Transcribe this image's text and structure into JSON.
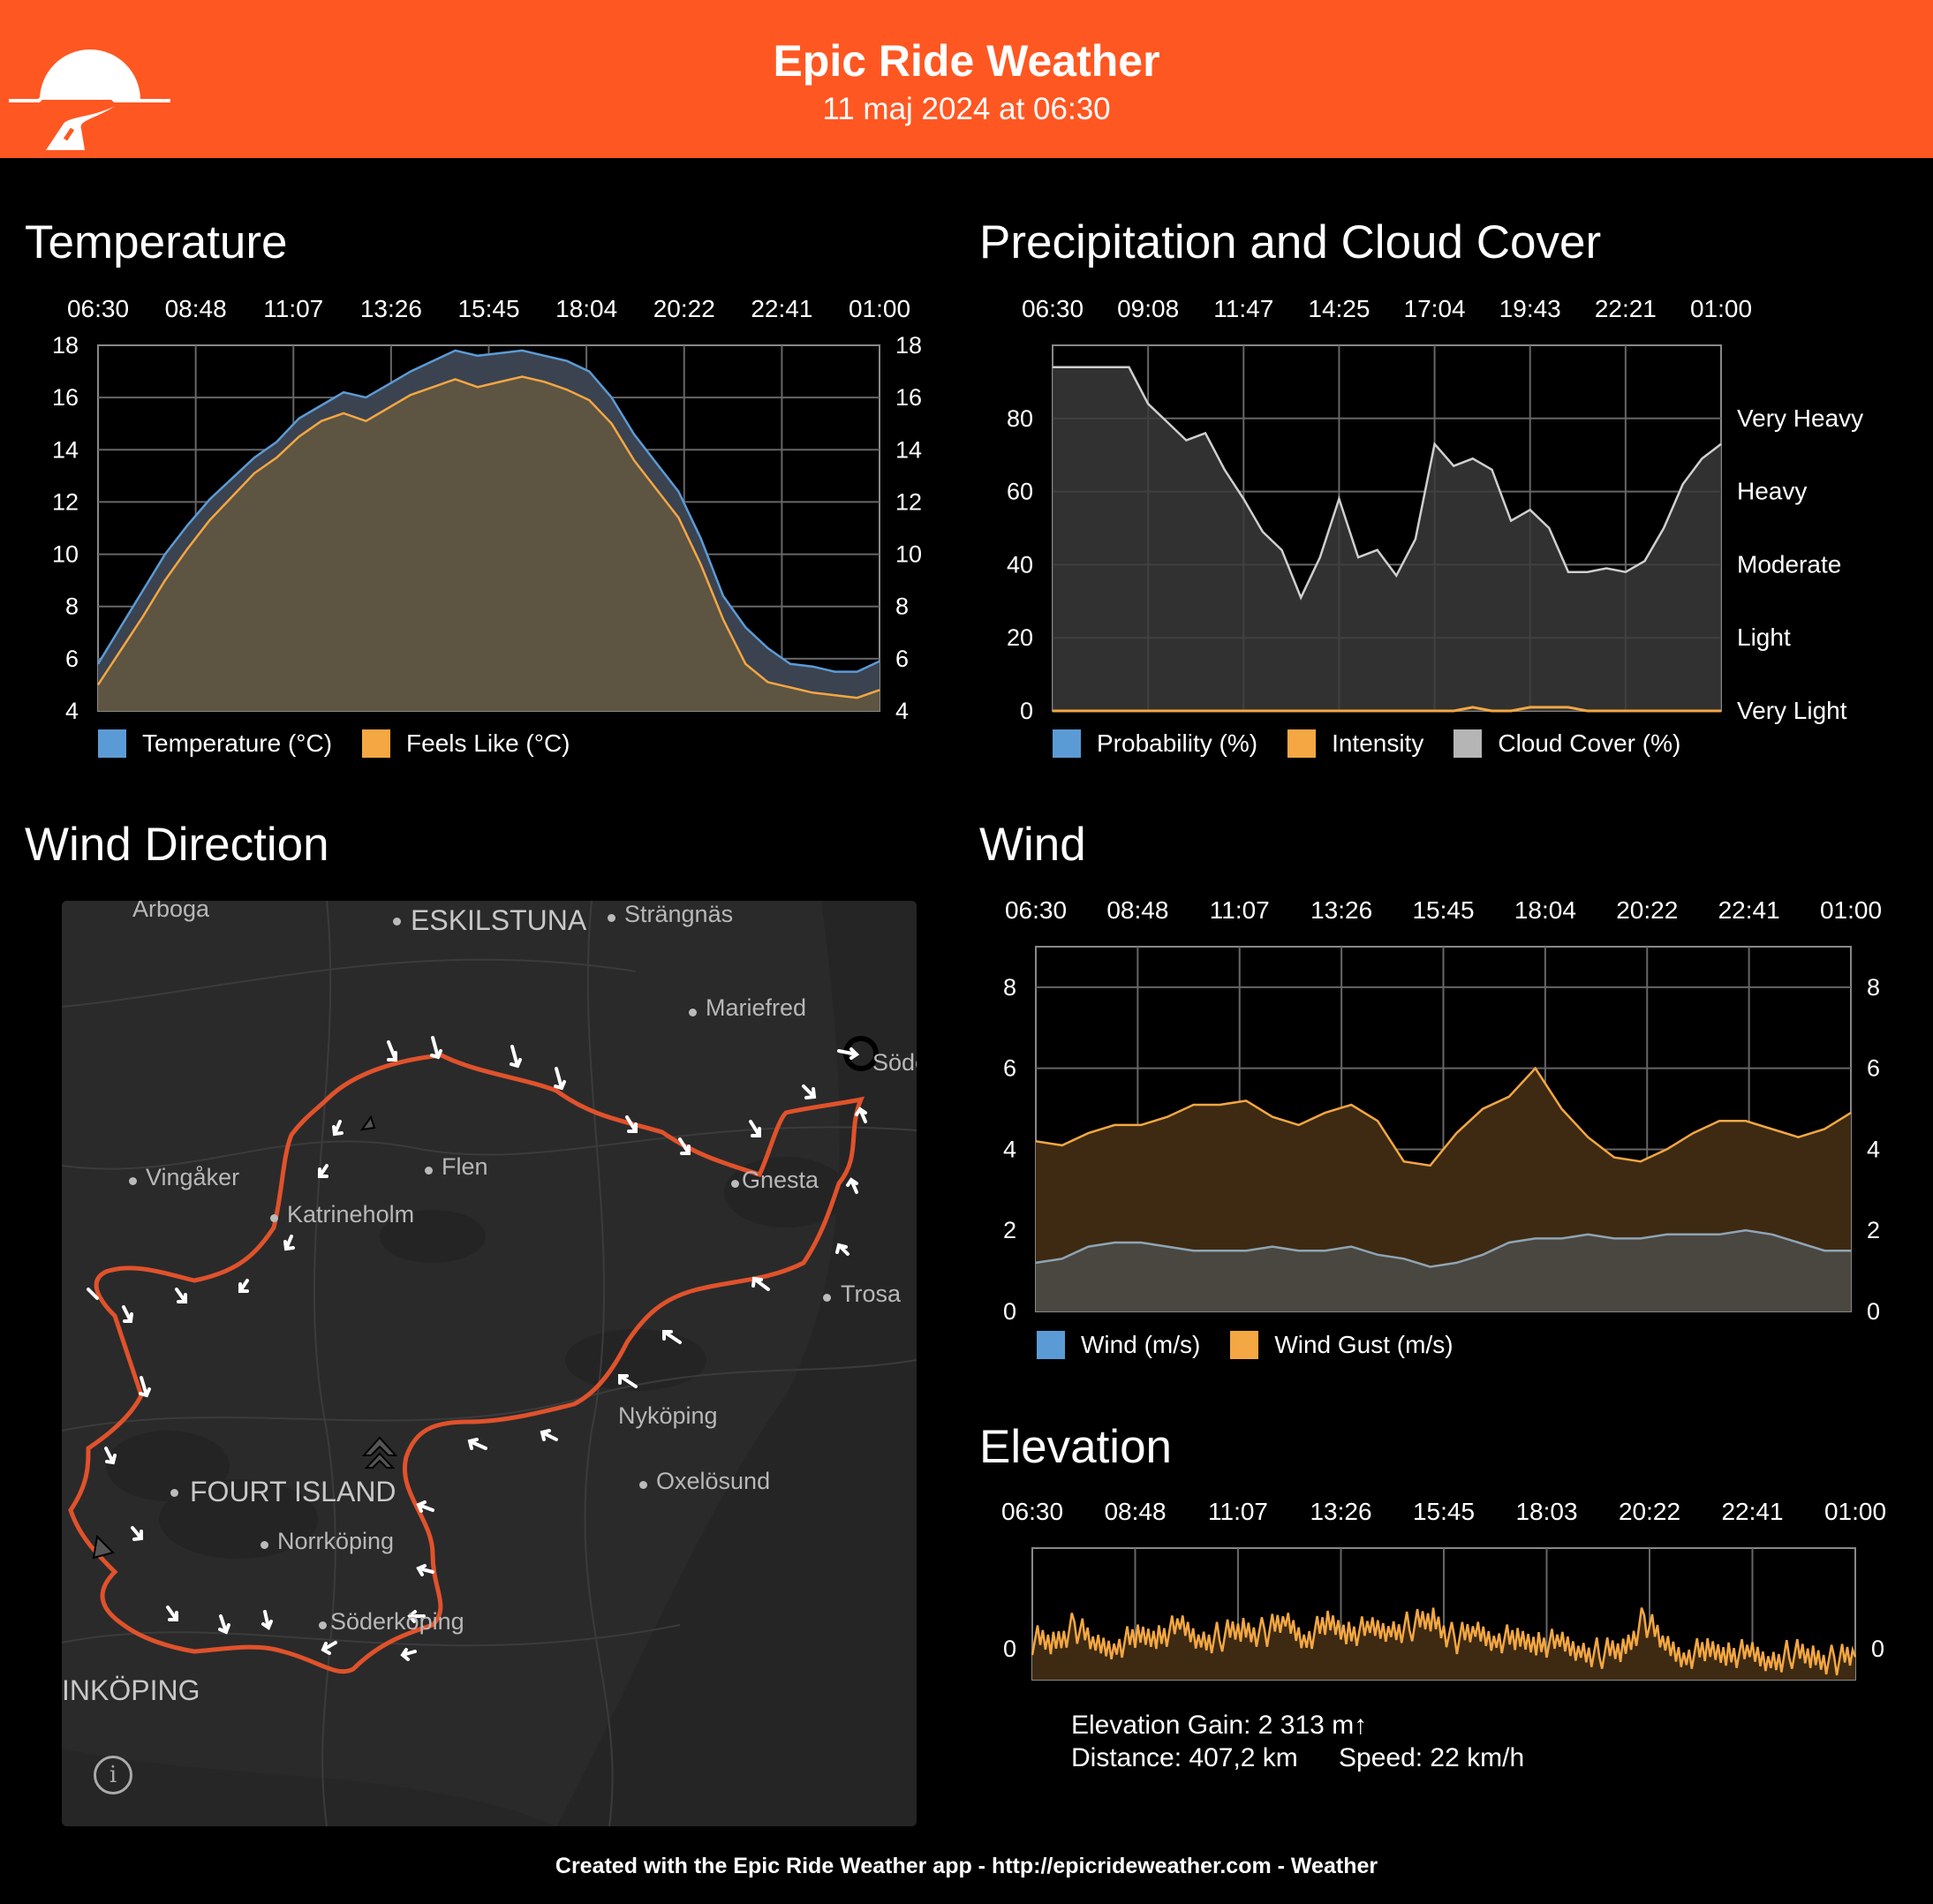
{
  "header": {
    "title": "Epic Ride Weather",
    "date": "11 maj 2024 at 06:30",
    "color": "#ff5722"
  },
  "colors": {
    "temperature": "#5b9bd5",
    "feels_like": "#f4a742",
    "cloud": "#cfcfcf",
    "wind": "#8fa4b4",
    "gust": "#f4a742",
    "elevation": "#f4a742",
    "route": "#e0522b"
  },
  "temperature": {
    "title": "Temperature",
    "legend": [
      "Temperature (°C)",
      "Feels Like (°C)"
    ]
  },
  "precipitation": {
    "title": "Precipitation and Cloud Cover",
    "legend": [
      "Probability (%)",
      "Intensity",
      "Cloud Cover (%)"
    ]
  },
  "wind_direction": {
    "title": "Wind Direction",
    "places": [
      "Arboga",
      "ESKILSTUNA",
      "Strängnäs",
      "Mariefred",
      "Söde",
      "Vingåker",
      "Flen",
      "Katrineholm",
      "Gnesta",
      "Trosa",
      "Nyköping",
      "Oxelösund",
      "FOURT ISLAND",
      "Norrköping",
      "Söderköping",
      "INKÖPING"
    ],
    "info_icon": "info-icon"
  },
  "wind": {
    "title": "Wind",
    "legend": [
      "Wind (m/s)",
      "Wind Gust (m/s)"
    ]
  },
  "elevation": {
    "title": "Elevation",
    "gain": "Elevation Gain: 2 313 m↑",
    "distance": "Distance: 407,2 km",
    "speed": "Speed: 22 km/h"
  },
  "footer": "Created with the Epic Ride Weather app - http://epicrideweather.com -  Weather",
  "chart_data": [
    {
      "id": "temperature",
      "type": "area",
      "x_ticks": [
        "06:30",
        "08:48",
        "11:07",
        "13:26",
        "15:45",
        "18:04",
        "20:22",
        "22:41",
        "01:00"
      ],
      "ylim": [
        4,
        18
      ],
      "y_ticks": [
        4,
        6,
        8,
        10,
        12,
        14,
        16,
        18
      ],
      "series": [
        {
          "name": "Temperature (°C)",
          "values": [
            5.8,
            7.2,
            8.6,
            10.0,
            11.1,
            12.1,
            12.9,
            13.7,
            14.3,
            15.2,
            15.7,
            16.2,
            16.0,
            16.5,
            17.0,
            17.4,
            17.8,
            17.6,
            17.7,
            17.8,
            17.6,
            17.4,
            17.0,
            16.0,
            14.6,
            13.5,
            12.4,
            10.6,
            8.4,
            7.2,
            6.4,
            5.8,
            5.7,
            5.5,
            5.5,
            5.9
          ]
        },
        {
          "name": "Feels Like (°C)",
          "values": [
            5.0,
            6.3,
            7.6,
            9.0,
            10.2,
            11.3,
            12.2,
            13.1,
            13.7,
            14.5,
            15.1,
            15.4,
            15.1,
            15.6,
            16.1,
            16.4,
            16.7,
            16.4,
            16.6,
            16.8,
            16.6,
            16.3,
            15.9,
            15.0,
            13.6,
            12.5,
            11.4,
            9.6,
            7.5,
            5.8,
            5.1,
            4.9,
            4.7,
            4.6,
            4.5,
            4.8
          ]
        }
      ]
    },
    {
      "id": "precipitation",
      "type": "area",
      "x_ticks": [
        "06:30",
        "09:08",
        "11:47",
        "14:25",
        "17:04",
        "19:43",
        "22:21",
        "01:00"
      ],
      "ylim": [
        0,
        100
      ],
      "y_ticks": [
        0,
        20,
        40,
        60,
        80
      ],
      "right_labels": [
        "Very Light",
        "Light",
        "Moderate",
        "Heavy",
        "Very Heavy"
      ],
      "series": [
        {
          "name": "Probability (%)",
          "values": [
            0,
            0,
            0,
            0,
            0,
            0,
            0,
            0,
            0,
            0,
            0,
            0,
            0,
            0,
            0,
            0,
            0,
            0,
            0,
            0,
            0,
            0,
            0,
            0,
            0,
            0,
            0,
            0,
            0,
            0,
            0,
            0,
            0,
            0,
            0,
            0
          ]
        },
        {
          "name": "Intensity",
          "values": [
            0,
            0,
            0,
            0,
            0,
            0,
            0,
            0,
            0,
            0,
            0,
            0,
            0,
            0,
            0,
            0,
            0,
            0,
            0,
            0,
            0,
            0,
            1,
            0,
            0,
            1,
            1,
            1,
            0,
            0,
            0,
            0,
            0,
            0,
            0,
            0
          ]
        },
        {
          "name": "Cloud Cover (%)",
          "values": [
            94,
            94,
            94,
            94,
            94,
            84,
            79,
            74,
            76,
            66,
            58,
            49,
            44,
            31,
            42,
            58,
            42,
            44,
            37,
            47,
            73,
            67,
            69,
            66,
            52,
            55,
            50,
            38,
            38,
            39,
            38,
            41,
            50,
            62,
            69,
            73
          ]
        }
      ]
    },
    {
      "id": "wind",
      "type": "area",
      "x_ticks": [
        "06:30",
        "08:48",
        "11:07",
        "13:26",
        "15:45",
        "18:04",
        "20:22",
        "22:41",
        "01:00"
      ],
      "ylim": [
        0,
        9
      ],
      "y_ticks": [
        0,
        2,
        4,
        6,
        8
      ],
      "series": [
        {
          "name": "Wind (m/s)",
          "values": [
            1.2,
            1.3,
            1.6,
            1.7,
            1.7,
            1.6,
            1.5,
            1.5,
            1.5,
            1.6,
            1.5,
            1.5,
            1.6,
            1.4,
            1.3,
            1.1,
            1.2,
            1.4,
            1.7,
            1.8,
            1.8,
            1.9,
            1.8,
            1.8,
            1.9,
            1.9,
            1.9,
            2.0,
            1.9,
            1.7,
            1.5,
            1.5
          ]
        },
        {
          "name": "Wind Gust (m/s)",
          "values": [
            4.2,
            4.1,
            4.4,
            4.6,
            4.6,
            4.8,
            5.1,
            5.1,
            5.2,
            4.8,
            4.6,
            4.9,
            5.1,
            4.7,
            3.7,
            3.6,
            4.4,
            5.0,
            5.3,
            6.0,
            5.0,
            4.3,
            3.8,
            3.7,
            4.0,
            4.4,
            4.7,
            4.7,
            4.5,
            4.3,
            4.5,
            4.9
          ]
        }
      ]
    },
    {
      "id": "elevation",
      "type": "area",
      "x_ticks": [
        "06:30",
        "08:48",
        "11:07",
        "13:26",
        "15:45",
        "18:03",
        "20:22",
        "22:41",
        "01:00"
      ],
      "y_ticks": [
        0
      ],
      "series": [
        {
          "name": "Elevation",
          "values": [
            8,
            7,
            12,
            6,
            7,
            8,
            10,
            11,
            8,
            9,
            11,
            10,
            13,
            9,
            12,
            11,
            10,
            11,
            12,
            14,
            8,
            10,
            9,
            7,
            8,
            6,
            5,
            4,
            5,
            14,
            6,
            4,
            4,
            5,
            3,
            2,
            4,
            3,
            2,
            3
          ]
        }
      ]
    }
  ]
}
